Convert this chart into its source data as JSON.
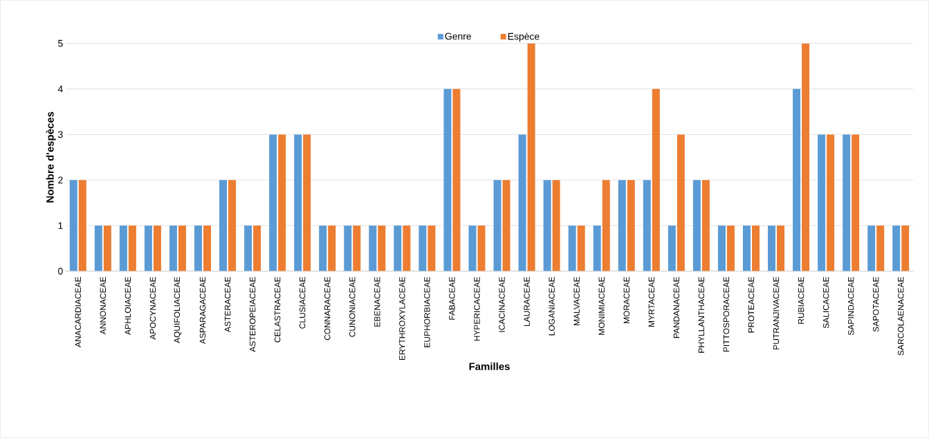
{
  "chart_data": {
    "type": "bar",
    "xlabel": "Familles",
    "ylabel": "Nombre d'espèces",
    "categories": [
      "ANACARDIACEAE",
      "ANNONACEAE",
      "APHLOIACEAE",
      "APOCYNACEAE",
      "AQUIFOLIACEAE",
      "ASPARAGACEAE",
      "ASTERACEAE",
      "ASTEROPEIACEAE",
      "CELASTRACEAE",
      "CLUSIACEAE",
      "CONNARACEAE",
      "CUNONIACEAE",
      "EBENACEAE",
      "ERYTHROXYLACEAE",
      "EUPHORBIACEAE",
      "FABACEAE",
      "HYPERICACEAE",
      "ICACINACEAE",
      "LAURACEAE",
      "LOGANIACEAE",
      "MALVACEAE",
      "MONIMIACEAE",
      "MORACEAE",
      "MYRTACEAE",
      "PANDANACEAE",
      "PHYLLANTHACEAE",
      "PITTOSPORACEAE",
      "PROTEACEAE",
      "PUTRANJIVACEAE",
      "RUBIACEAE",
      "SALICACEAE",
      "SAPINDACEAE",
      "SAPOTACEAE",
      "SARCOLAENACEAE"
    ],
    "series": [
      {
        "name": "Genre",
        "color": "#5b9bd5",
        "values": [
          2,
          1,
          1,
          1,
          1,
          1,
          2,
          1,
          3,
          3,
          1,
          1,
          1,
          1,
          1,
          4,
          1,
          2,
          3,
          2,
          1,
          1,
          2,
          2,
          1,
          2,
          1,
          1,
          1,
          4,
          3,
          3,
          1,
          1
        ]
      },
      {
        "name": "Espèce",
        "color": "#ed7d31",
        "values": [
          2,
          1,
          1,
          1,
          1,
          1,
          2,
          1,
          3,
          3,
          1,
          1,
          1,
          1,
          1,
          4,
          1,
          2,
          5,
          2,
          1,
          2,
          2,
          4,
          3,
          2,
          1,
          1,
          1,
          5,
          3,
          3,
          1,
          1
        ]
      }
    ],
    "ylim": [
      0,
      5
    ],
    "yticks": [
      0,
      1,
      2,
      3,
      4,
      5
    ],
    "grid": "y",
    "legend": "top"
  }
}
